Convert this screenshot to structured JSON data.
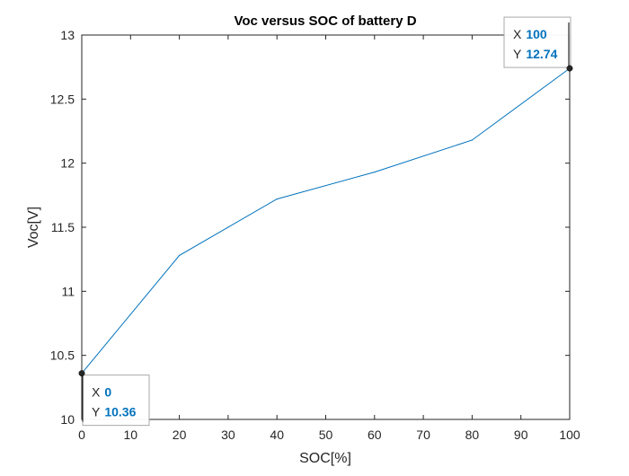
{
  "chart_data": {
    "type": "line",
    "title": "Voc versus SOC of battery D",
    "xlabel": "SOC[%]",
    "ylabel": "Voc[V]",
    "xlim": [
      0,
      100
    ],
    "ylim": [
      10,
      13
    ],
    "xticks": [
      "0",
      "10",
      "20",
      "30",
      "40",
      "50",
      "60",
      "70",
      "80",
      "90",
      "100"
    ],
    "yticks": [
      "10",
      "10.5",
      "11",
      "11.5",
      "12",
      "12.5",
      "13"
    ],
    "grid": false,
    "series": [
      {
        "color": "#0072bd",
        "x": [
          0,
          20,
          40,
          60,
          80,
          100
        ],
        "y": [
          10.36,
          11.28,
          11.72,
          11.93,
          12.18,
          12.74
        ]
      }
    ],
    "datatips": [
      {
        "x_label": "X",
        "x_value": "0",
        "y_label": "Y",
        "y_value": "10.36",
        "x": 0,
        "y": 10.36
      },
      {
        "x_label": "X",
        "x_value": "100",
        "y_label": "Y",
        "y_value": "12.74",
        "x": 100,
        "y": 12.74
      }
    ],
    "colors": {
      "line": "#0072bd",
      "datatip_value": "#0072bd",
      "marker": "#262626",
      "axis": "#262626"
    }
  }
}
